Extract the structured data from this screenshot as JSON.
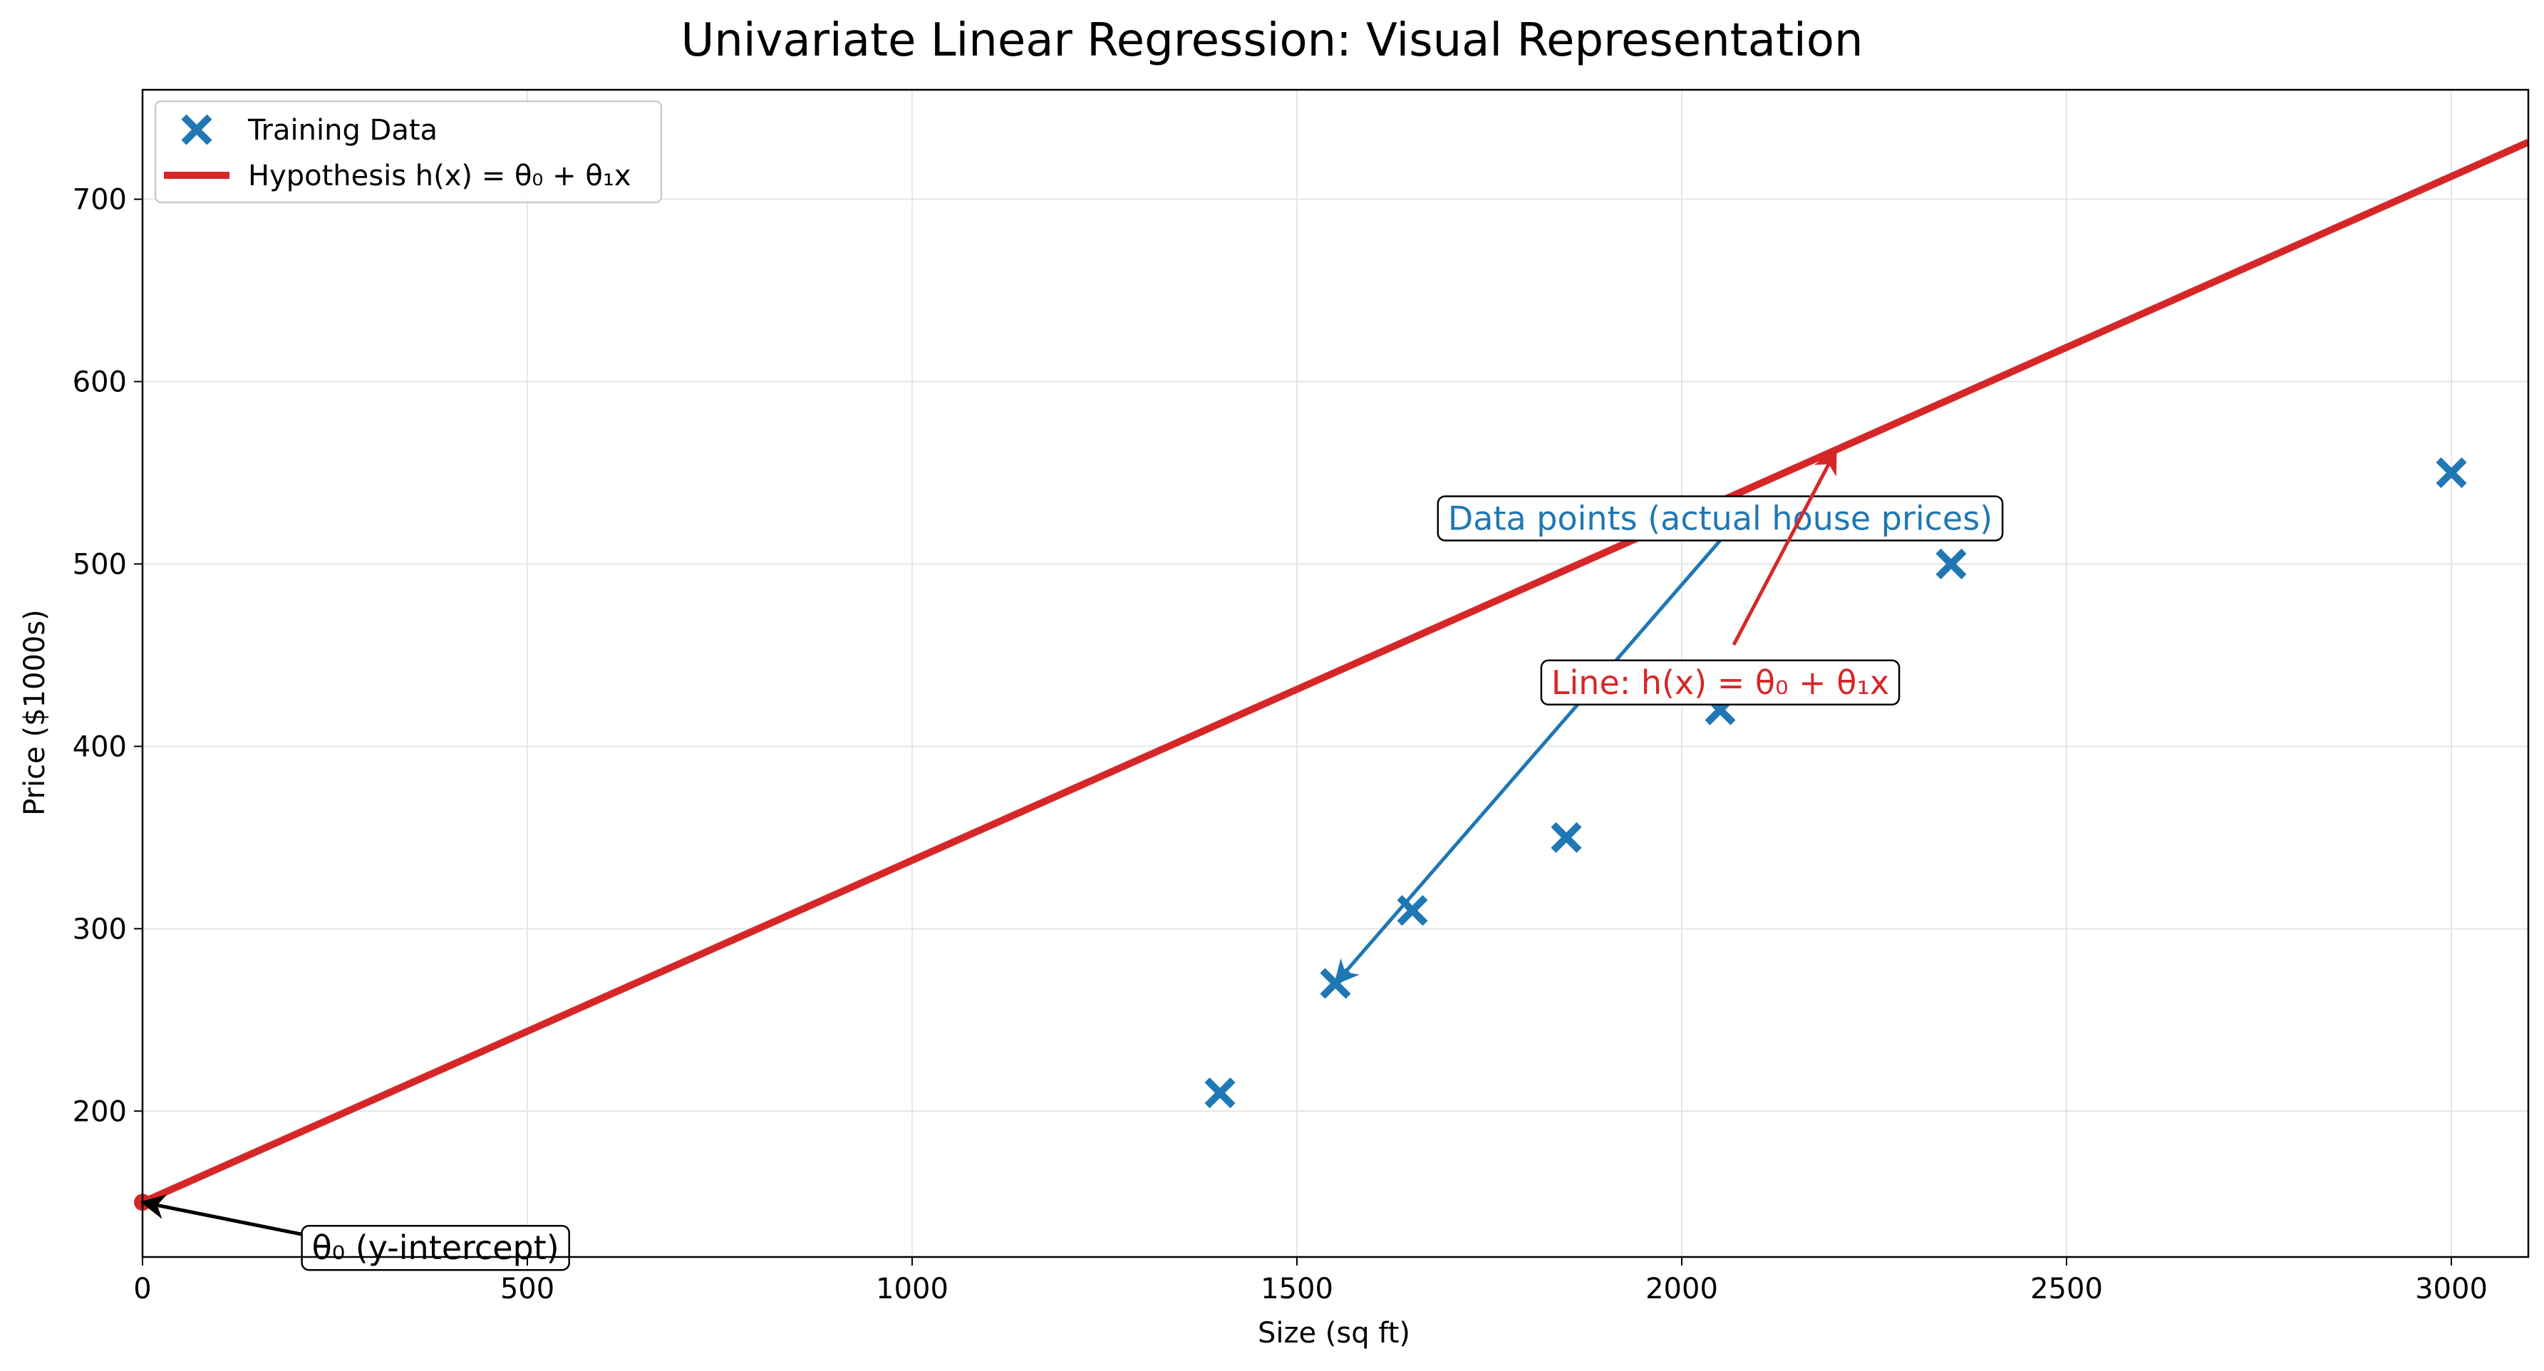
{
  "colors": {
    "data": "#1f77b4",
    "line": "#d62728",
    "grid": "#e6e6e6",
    "axis": "#000000",
    "text": "#000000"
  },
  "chart_data": {
    "type": "scatter",
    "title": "Univariate Linear Regression: Visual Representation",
    "xlabel": "Size (sq ft)",
    "ylabel": "Price ($1000s)",
    "xlim": [
      0,
      3100
    ],
    "ylim": [
      120,
      760
    ],
    "xticks": [
      0,
      500,
      1000,
      1500,
      2000,
      2500,
      3000
    ],
    "yticks": [
      200,
      300,
      400,
      500,
      600,
      700
    ],
    "grid": true,
    "legend_position": "upper-left",
    "series": [
      {
        "name": "Training Data",
        "kind": "scatter",
        "marker": "x",
        "x": [
          1400,
          1550,
          1650,
          1850,
          2050,
          2350,
          3000
        ],
        "y": [
          210,
          270,
          310,
          350,
          420,
          500,
          550
        ]
      },
      {
        "name": "Hypothesis h(x) = θ₀ + θ₁x",
        "kind": "line",
        "intercept": 150,
        "slope": 0.1875,
        "x": [
          0,
          3100
        ],
        "y": [
          150,
          731.25
        ]
      }
    ],
    "annotations": [
      {
        "text": "Data points (actual house prices)",
        "color": "#1f77b4",
        "text_at": [
          2050,
          525
        ],
        "arrow_to": [
          1550,
          270
        ]
      },
      {
        "text": "Line: h(x) = θ₀ + θ₁x",
        "color": "#d62728",
        "text_at": [
          2050,
          435
        ],
        "arrow_to": [
          2200,
          562
        ]
      },
      {
        "text": "θ₀ (y-intercept)",
        "color": "#000000",
        "text_at": [
          220,
          125
        ],
        "arrow_to": [
          0,
          150
        ]
      }
    ]
  }
}
